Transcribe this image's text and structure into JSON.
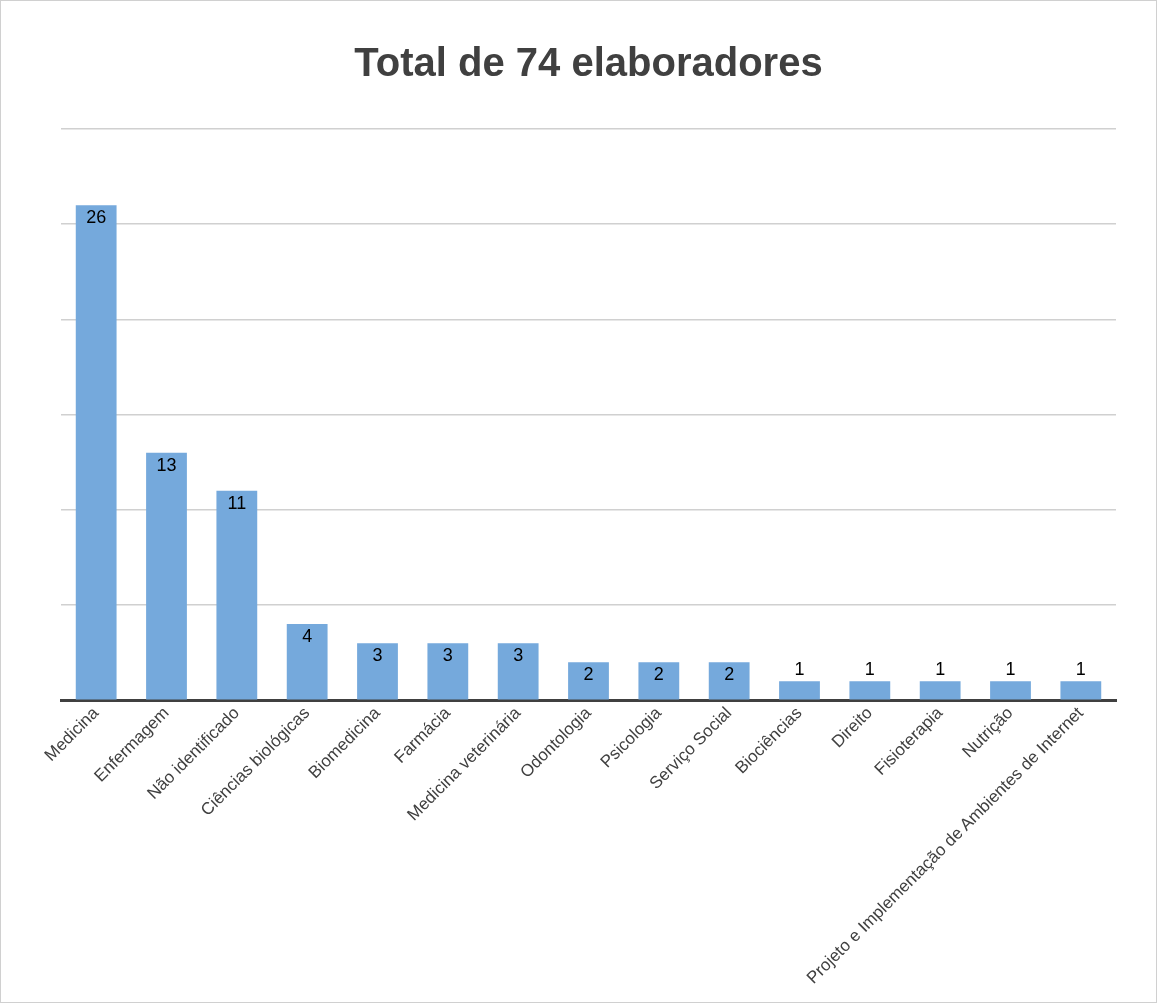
{
  "chart_data": {
    "type": "bar",
    "title": "Total de 74 elaboradores",
    "categories": [
      "Medicina",
      "Enfermagem",
      "Não identificado",
      "Ciências biológicas",
      "Biomedicina",
      "Farmácia",
      "Medicina veterinária",
      "Odontologia",
      "Psicologia",
      "Serviço Social",
      "Biociências",
      "Direito",
      "Fisioterapia",
      "Nutrição",
      "Projeto e Implementação de Ambientes de Internet"
    ],
    "values": [
      26,
      13,
      11,
      4,
      3,
      3,
      3,
      2,
      2,
      2,
      1,
      1,
      1,
      1,
      1
    ],
    "color": "#75a9dc",
    "ylim": [
      0,
      30
    ],
    "yticks": [
      {
        "value": 0,
        "label": null
      },
      {
        "value": 5,
        "label": null
      },
      {
        "value": 10,
        "label": null
      },
      {
        "value": 15,
        "label": null
      },
      {
        "value": 20,
        "label": null
      },
      {
        "value": 25,
        "label": null
      },
      {
        "value": 30,
        "label": null
      }
    ],
    "grid": "y",
    "tick_labels": "x",
    "data_labels": true
  }
}
